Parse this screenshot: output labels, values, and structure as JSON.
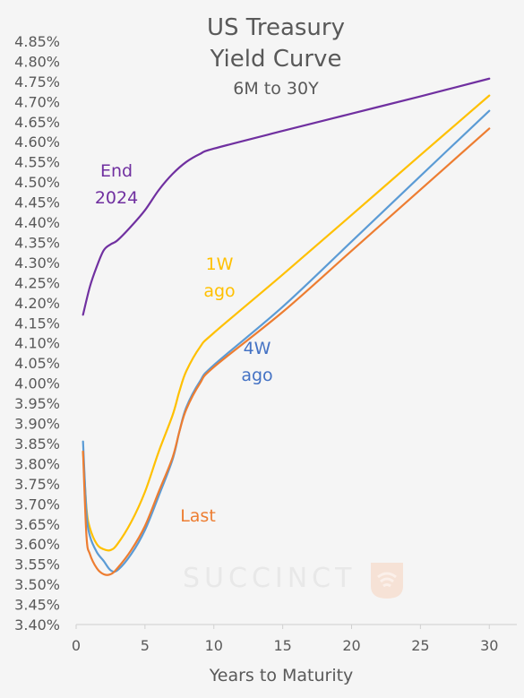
{
  "chart_data": {
    "type": "line",
    "title": "US Treasury",
    "title_line2": "Yield Curve",
    "subtitle": "6M to 30Y",
    "xlabel": "Years to Maturity",
    "ylabel": "",
    "xlim": [
      0,
      32
    ],
    "ylim": [
      3.4,
      4.85
    ],
    "xticks": [
      "0",
      "5",
      "10",
      "15",
      "20",
      "25",
      "30"
    ],
    "xtick_values": [
      0,
      5,
      10,
      15,
      20,
      25,
      30
    ],
    "yticks": [
      "3.40%",
      "3.45%",
      "3.50%",
      "3.55%",
      "3.60%",
      "3.65%",
      "3.70%",
      "3.75%",
      "3.80%",
      "3.85%",
      "3.90%",
      "3.95%",
      "4.00%",
      "4.05%",
      "4.10%",
      "4.15%",
      "4.20%",
      "4.25%",
      "4.30%",
      "4.35%",
      "4.40%",
      "4.45%",
      "4.50%",
      "4.55%",
      "4.60%",
      "4.65%",
      "4.70%",
      "4.75%",
      "4.80%",
      "4.85%"
    ],
    "ytick_values": [
      3.4,
      3.45,
      3.5,
      3.55,
      3.6,
      3.65,
      3.7,
      3.75,
      3.8,
      3.85,
      3.9,
      3.95,
      4.0,
      4.05,
      4.1,
      4.15,
      4.2,
      4.25,
      4.3,
      4.35,
      4.4,
      4.45,
      4.5,
      4.55,
      4.6,
      4.65,
      4.7,
      4.75,
      4.8,
      4.85
    ],
    "grid": false,
    "series": [
      {
        "name": "End 2024",
        "label_lines": [
          "End",
          "2024"
        ],
        "color": "#7030a0",
        "x": [
          0.5,
          1,
          1.5,
          2,
          2.5,
          3,
          4,
          5,
          6,
          7,
          8,
          9,
          10,
          15,
          20,
          25,
          30
        ],
        "y": [
          4.17,
          4.24,
          4.29,
          4.33,
          4.345,
          4.355,
          4.39,
          4.43,
          4.48,
          4.52,
          4.55,
          4.57,
          4.583,
          4.627,
          4.67,
          4.713,
          4.757
        ]
      },
      {
        "name": "1W ago",
        "label_lines": [
          "1W",
          "ago"
        ],
        "color": "#ffc000",
        "x": [
          0.5,
          0.75,
          1,
          1.5,
          2,
          2.5,
          3,
          4,
          5,
          6,
          7,
          7.5,
          8,
          9,
          10,
          15,
          20,
          25,
          30
        ],
        "y": [
          3.83,
          3.69,
          3.64,
          3.6,
          3.587,
          3.585,
          3.6,
          3.655,
          3.73,
          3.83,
          3.92,
          3.98,
          4.03,
          4.09,
          4.125,
          4.27,
          4.418,
          4.567,
          4.715
        ]
      },
      {
        "name": "4W ago",
        "label_lines": [
          "4W",
          "ago"
        ],
        "color": "#5b9bd5",
        "x": [
          0.5,
          0.75,
          1,
          1.5,
          2,
          2.5,
          3,
          4,
          5,
          6,
          7,
          7.5,
          8,
          9,
          10,
          15,
          20,
          25,
          30
        ],
        "y": [
          3.855,
          3.68,
          3.62,
          3.58,
          3.558,
          3.535,
          3.535,
          3.575,
          3.635,
          3.72,
          3.81,
          3.88,
          3.94,
          4.005,
          4.045,
          4.19,
          4.352,
          4.515,
          4.677
        ]
      },
      {
        "name": "Last",
        "label_lines": [
          "Last"
        ],
        "color": "#ed7d31",
        "x": [
          0.5,
          0.75,
          1,
          1.5,
          2,
          2.5,
          3,
          4,
          5,
          6,
          7,
          7.5,
          8,
          9,
          10,
          15,
          20,
          25,
          30
        ],
        "y": [
          3.83,
          3.62,
          3.575,
          3.54,
          3.525,
          3.525,
          3.54,
          3.585,
          3.645,
          3.73,
          3.815,
          3.88,
          3.935,
          4.0,
          4.04,
          4.177,
          4.329,
          4.481,
          4.633
        ]
      }
    ],
    "watermark": "SUCCINCT"
  }
}
